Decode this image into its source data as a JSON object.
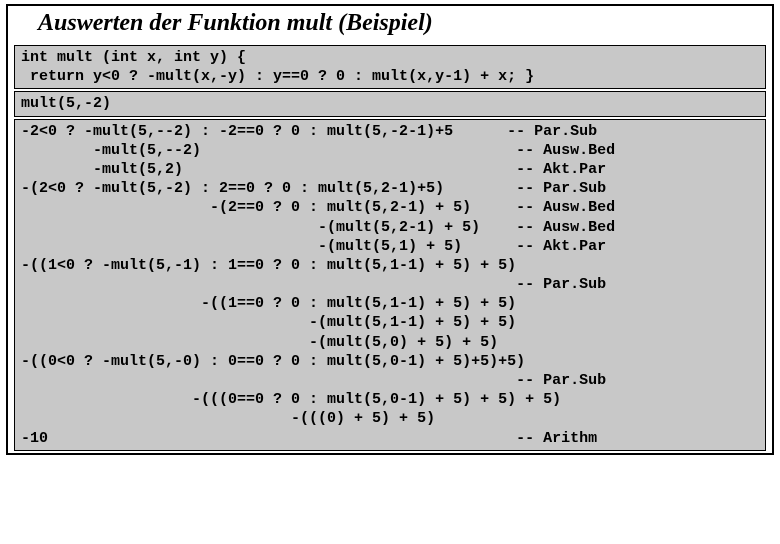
{
  "title": "Auswerten der Funktion mult (Beispiel)",
  "code_panel": "int mult (int x, int y) {\n return y<0 ? -mult(x,-y) : y==0 ? 0 : mult(x,y-1) + x; }",
  "call_panel": "mult(5,-2)",
  "trace_panel": "-2<0 ? -mult(5,--2) : -2==0 ? 0 : mult(5,-2-1)+5      -- Par.Sub\n        -mult(5,--2)                                   -- Ausw.Bed\n        -mult(5,2)                                     -- Akt.Par\n-(2<0 ? -mult(5,-2) : 2==0 ? 0 : mult(5,2-1)+5)        -- Par.Sub\n                     -(2==0 ? 0 : mult(5,2-1) + 5)     -- Ausw.Bed\n                                 -(mult(5,2-1) + 5)    -- Ausw.Bed\n                                 -(mult(5,1) + 5)      -- Akt.Par\n-((1<0 ? -mult(5,-1) : 1==0 ? 0 : mult(5,1-1) + 5) + 5)\n                                                       -- Par.Sub\n                    -((1==0 ? 0 : mult(5,1-1) + 5) + 5)\n                                -(mult(5,1-1) + 5) + 5)\n                                -(mult(5,0) + 5) + 5)\n-((0<0 ? -mult(5,-0) : 0==0 ? 0 : mult(5,0-1) + 5)+5)+5)\n                                                       -- Par.Sub\n                   -(((0==0 ? 0 : mult(5,0-1) + 5) + 5) + 5)\n                              -(((0) + 5) + 5)\n-10                                                    -- Arithm",
  "colors": {
    "panel_bg": "#c8c8c8",
    "border": "#000000",
    "page_bg": "#ffffff"
  }
}
